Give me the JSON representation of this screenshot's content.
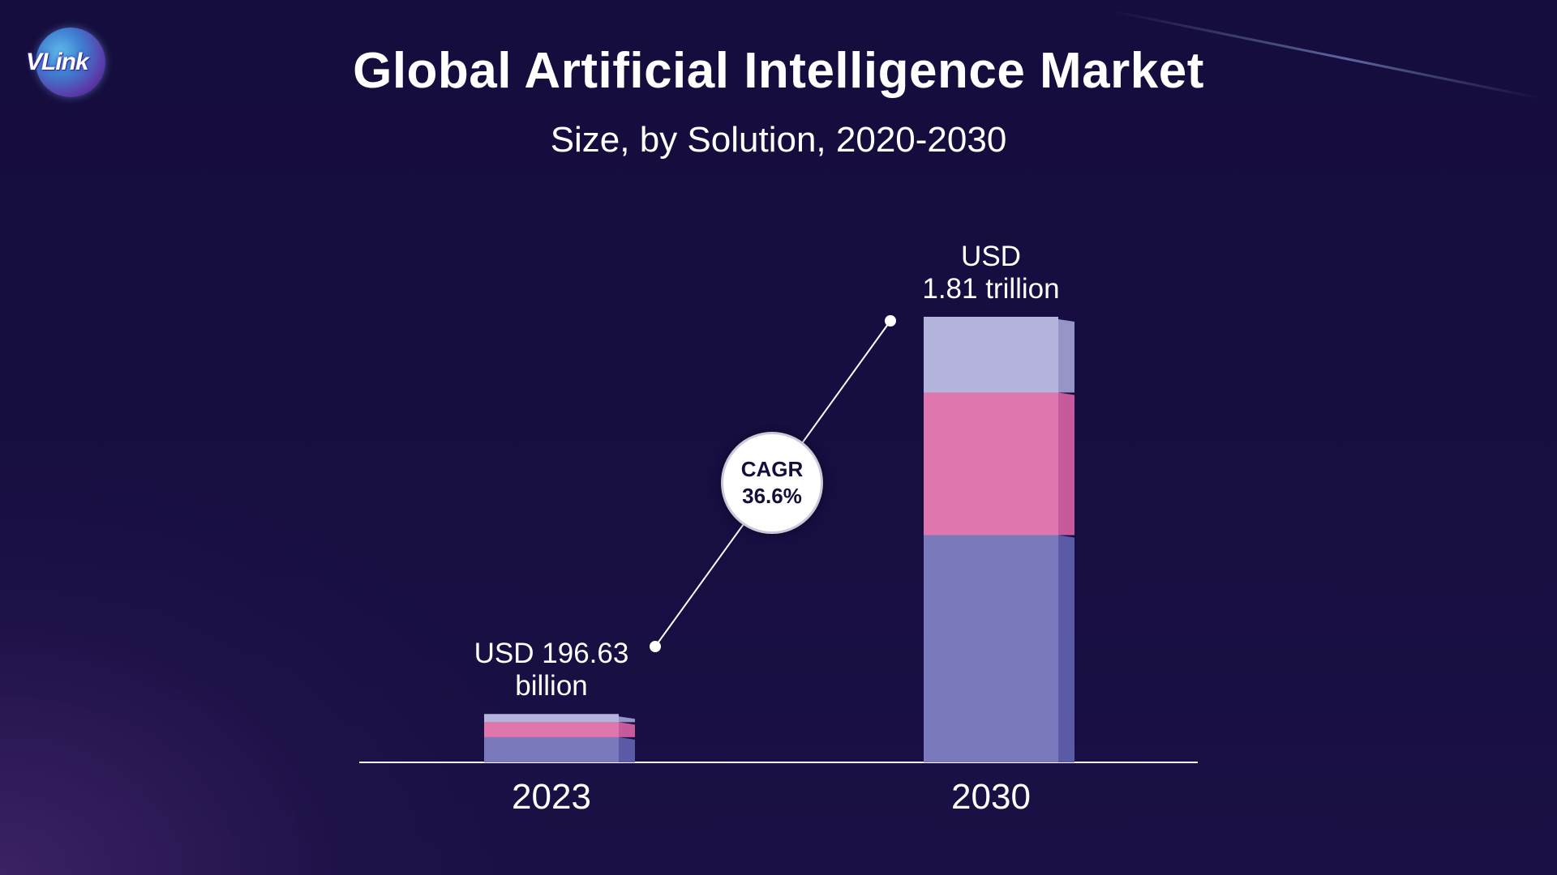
{
  "brand": {
    "logo_text": "VLink"
  },
  "chart_data": {
    "type": "bar",
    "title": "Global Artificial Intelligence Market",
    "subtitle": "Size, by Solution, 2020-2030",
    "categories": [
      "2023",
      "2030"
    ],
    "stacked": true,
    "values": [
      196.63,
      1810
    ],
    "value_unit": "USD billion",
    "value_labels": [
      {
        "line1": "USD 196.63",
        "line2": "billion"
      },
      {
        "line1": "USD",
        "line2": "1.81 trillion"
      }
    ],
    "segment_fractions": [
      [
        0.52,
        0.31,
        0.17
      ],
      [
        0.51,
        0.32,
        0.17
      ]
    ],
    "segment_colors": [
      "#7979bb",
      "#e076ae",
      "#b5b4dc"
    ],
    "segment_side_colors": [
      "#5b5aa6",
      "#c65a9a",
      "#9795c7"
    ],
    "annotation": {
      "line1": "CAGR",
      "line2": "36.6%"
    },
    "ylim": [
      0,
      1810
    ],
    "grid": false,
    "legend": "none"
  },
  "colors": {
    "background": "#150d3c",
    "text": "#ffffff",
    "axis": "#ffffff"
  }
}
